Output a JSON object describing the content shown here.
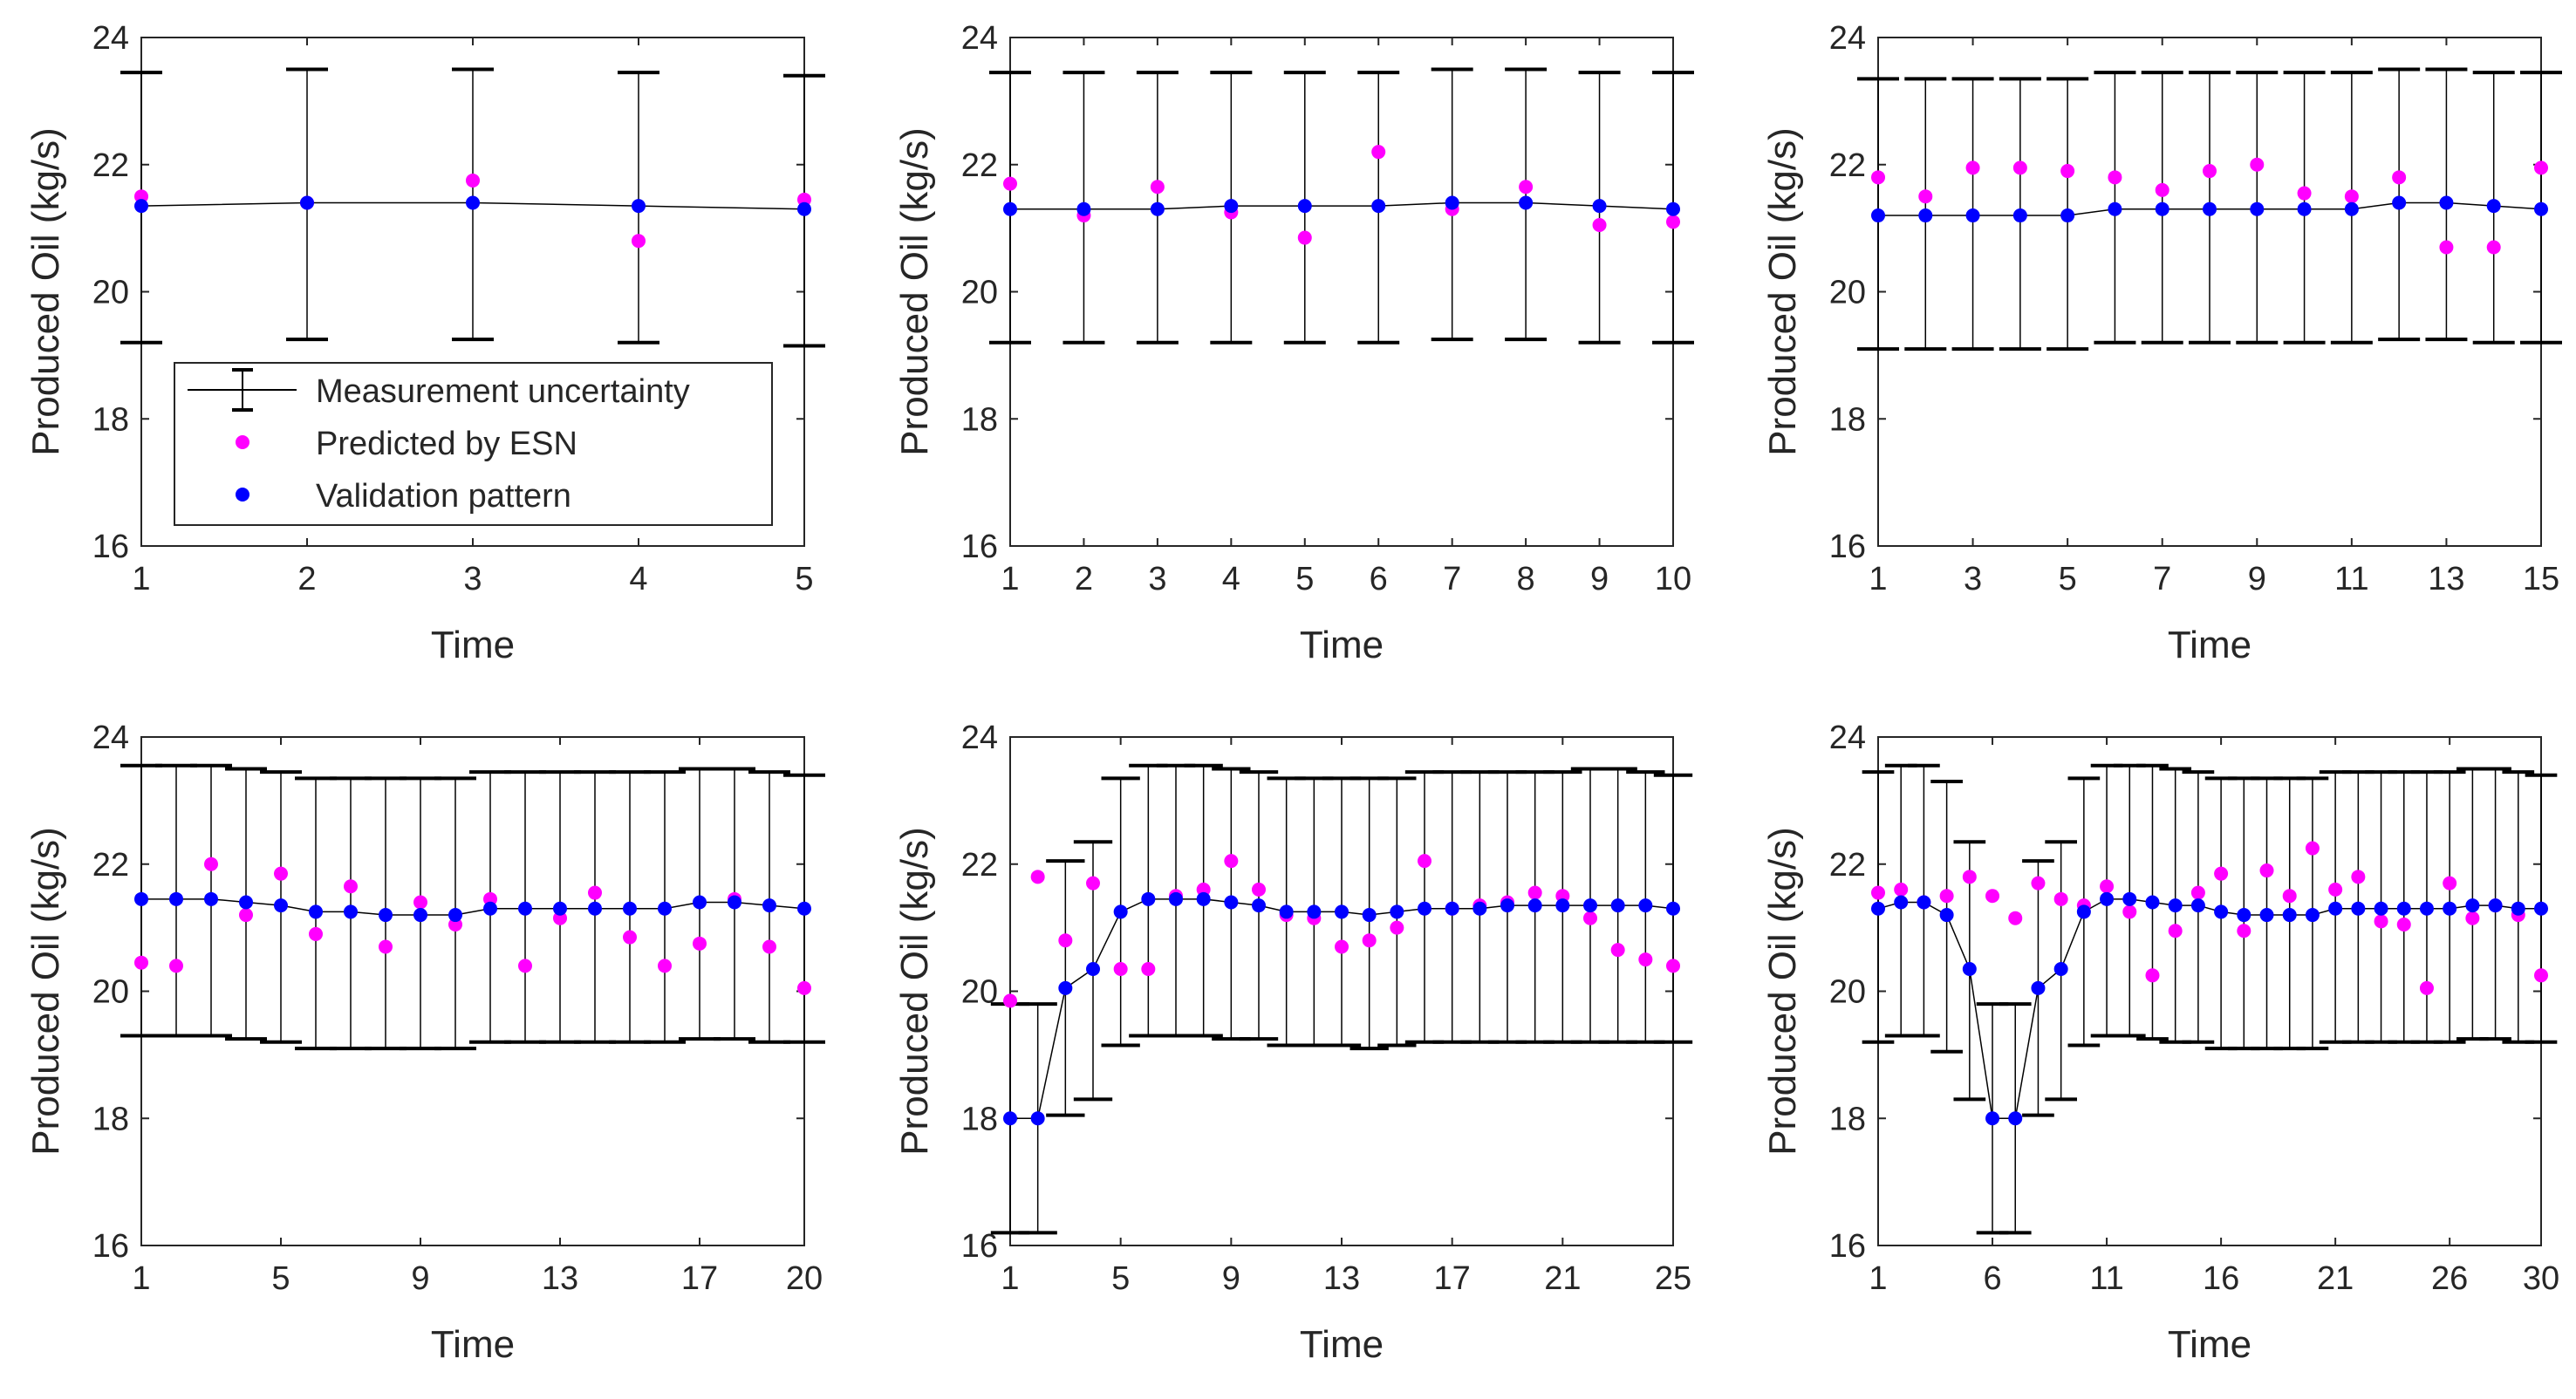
{
  "figure": {
    "colors": {
      "predicted": "#ff00ff",
      "validation": "#0000ff",
      "uncertainty": "#000000",
      "axis": "#262626"
    }
  },
  "legend": {
    "items": [
      {
        "label": "Measurement uncertainty",
        "marker": "errorbar"
      },
      {
        "label": "Predicted by ESN",
        "marker": "magenta-dot"
      },
      {
        "label": "Validation pattern",
        "marker": "blue-dot"
      }
    ]
  },
  "chart_data": [
    {
      "type": "errorbar-scatter",
      "title": "",
      "xlabel": "Time",
      "ylabel": "Produced Oil (kg/s)",
      "ylim": [
        16,
        24
      ],
      "xlim": [
        1,
        5
      ],
      "yticks": [
        "16",
        "18",
        "20",
        "22",
        "24"
      ],
      "xticks": [
        1,
        2,
        3,
        4,
        5
      ],
      "xtick_labels": [
        "1",
        "2",
        "3",
        "4",
        "5"
      ],
      "validation": [
        21.35,
        21.4,
        21.4,
        21.35,
        21.3
      ],
      "predicted": [
        21.5,
        21.4,
        21.75,
        20.8,
        21.45
      ],
      "lower": [
        19.2,
        19.25,
        19.25,
        19.2,
        19.15
      ],
      "upper": [
        23.45,
        23.5,
        23.5,
        23.45,
        23.4
      ],
      "legend": true
    },
    {
      "type": "errorbar-scatter",
      "title": "",
      "xlabel": "Time",
      "ylabel": "Produced Oil (kg/s)",
      "ylim": [
        16,
        24
      ],
      "xlim": [
        1,
        10
      ],
      "yticks": [
        "16",
        "18",
        "20",
        "22",
        "24"
      ],
      "xticks": [
        1,
        2,
        3,
        4,
        5,
        6,
        7,
        8,
        9,
        10
      ],
      "xtick_labels": [
        "1",
        "2",
        "3",
        "4",
        "5",
        "6",
        "7",
        "8",
        "9",
        "10"
      ],
      "validation": [
        21.3,
        21.3,
        21.3,
        21.35,
        21.35,
        21.35,
        21.4,
        21.4,
        21.35,
        21.3
      ],
      "predicted": [
        21.7,
        21.2,
        21.65,
        21.25,
        20.85,
        22.2,
        21.3,
        21.65,
        21.05,
        21.1
      ],
      "lower": [
        19.2,
        19.2,
        19.2,
        19.2,
        19.2,
        19.2,
        19.25,
        19.25,
        19.2,
        19.2
      ],
      "upper": [
        23.45,
        23.45,
        23.45,
        23.45,
        23.45,
        23.45,
        23.5,
        23.5,
        23.45,
        23.45
      ],
      "legend": false
    },
    {
      "type": "errorbar-scatter",
      "title": "",
      "xlabel": "Time",
      "ylabel": "Produced Oil (kg/s)",
      "ylim": [
        16,
        24
      ],
      "xlim": [
        1,
        15
      ],
      "yticks": [
        "16",
        "18",
        "20",
        "22",
        "24"
      ],
      "xticks": [
        1,
        3,
        5,
        7,
        9,
        11,
        13,
        15
      ],
      "xtick_labels": [
        "1",
        "3",
        "5",
        "7",
        "9",
        "11",
        "13",
        "15"
      ],
      "validation": [
        21.2,
        21.2,
        21.2,
        21.2,
        21.2,
        21.3,
        21.3,
        21.3,
        21.3,
        21.3,
        21.3,
        21.4,
        21.4,
        21.35,
        21.3
      ],
      "predicted": [
        21.8,
        21.5,
        21.95,
        21.95,
        21.9,
        21.8,
        21.6,
        21.9,
        22.0,
        21.55,
        21.5,
        21.8,
        20.7,
        20.7,
        21.95
      ],
      "lower": [
        19.1,
        19.1,
        19.1,
        19.1,
        19.1,
        19.2,
        19.2,
        19.2,
        19.2,
        19.2,
        19.2,
        19.25,
        19.25,
        19.2,
        19.2
      ],
      "upper": [
        23.35,
        23.35,
        23.35,
        23.35,
        23.35,
        23.45,
        23.45,
        23.45,
        23.45,
        23.45,
        23.45,
        23.5,
        23.5,
        23.45,
        23.45
      ],
      "legend": false
    },
    {
      "type": "errorbar-scatter",
      "title": "",
      "xlabel": "Time",
      "ylabel": "Produced Oil (kg/s)",
      "ylim": [
        16,
        24
      ],
      "xlim": [
        1,
        20
      ],
      "yticks": [
        "16",
        "18",
        "20",
        "22",
        "24"
      ],
      "xticks": [
        1,
        5,
        9,
        13,
        17,
        20
      ],
      "xtick_labels": [
        "1",
        "5",
        "9",
        "13",
        "17",
        "20"
      ],
      "validation": [
        21.45,
        21.45,
        21.45,
        21.4,
        21.35,
        21.25,
        21.25,
        21.2,
        21.2,
        21.2,
        21.3,
        21.3,
        21.3,
        21.3,
        21.3,
        21.3,
        21.4,
        21.4,
        21.35,
        21.3
      ],
      "predicted": [
        20.45,
        20.4,
        22.0,
        21.2,
        21.85,
        20.9,
        21.65,
        20.7,
        21.4,
        21.05,
        21.45,
        20.4,
        21.15,
        21.55,
        20.85,
        20.4,
        20.75,
        21.45,
        20.7,
        20.05
      ],
      "lower": [
        19.3,
        19.3,
        19.3,
        19.25,
        19.2,
        19.1,
        19.1,
        19.1,
        19.1,
        19.1,
        19.2,
        19.2,
        19.2,
        19.2,
        19.2,
        19.2,
        19.25,
        19.25,
        19.2,
        19.2
      ],
      "upper": [
        23.55,
        23.55,
        23.55,
        23.5,
        23.45,
        23.35,
        23.35,
        23.35,
        23.35,
        23.35,
        23.45,
        23.45,
        23.45,
        23.45,
        23.45,
        23.45,
        23.5,
        23.5,
        23.45,
        23.4
      ],
      "legend": false
    },
    {
      "type": "errorbar-scatter",
      "title": "",
      "xlabel": "Time",
      "ylabel": "Produced Oil (kg/s)",
      "ylim": [
        16,
        24
      ],
      "xlim": [
        1,
        25
      ],
      "yticks": [
        "16",
        "18",
        "20",
        "22",
        "24"
      ],
      "xticks": [
        1,
        5,
        9,
        13,
        17,
        21,
        25
      ],
      "xtick_labels": [
        "1",
        "5",
        "9",
        "13",
        "17",
        "21",
        "25"
      ],
      "validation": [
        18.0,
        18.0,
        20.05,
        20.35,
        21.25,
        21.45,
        21.45,
        21.45,
        21.4,
        21.35,
        21.25,
        21.25,
        21.25,
        21.2,
        21.25,
        21.3,
        21.3,
        21.3,
        21.35,
        21.35,
        21.35,
        21.35,
        21.35,
        21.35,
        21.3
      ],
      "predicted": [
        19.85,
        21.8,
        20.8,
        21.7,
        20.35,
        20.35,
        21.5,
        21.6,
        22.05,
        21.6,
        21.2,
        21.15,
        20.7,
        20.8,
        21.0,
        22.05,
        21.3,
        21.35,
        21.4,
        21.55,
        21.5,
        21.15,
        20.65,
        20.5,
        20.4
      ],
      "lower": [
        16.2,
        16.2,
        18.05,
        18.3,
        19.15,
        19.3,
        19.3,
        19.3,
        19.25,
        19.25,
        19.15,
        19.15,
        19.15,
        19.1,
        19.15,
        19.2,
        19.2,
        19.2,
        19.2,
        19.2,
        19.2,
        19.2,
        19.2,
        19.2,
        19.2
      ],
      "upper": [
        19.8,
        19.8,
        22.05,
        22.35,
        23.35,
        23.55,
        23.55,
        23.55,
        23.5,
        23.45,
        23.35,
        23.35,
        23.35,
        23.35,
        23.35,
        23.45,
        23.45,
        23.45,
        23.45,
        23.45,
        23.45,
        23.5,
        23.5,
        23.45,
        23.4
      ],
      "legend": false
    },
    {
      "type": "errorbar-scatter",
      "title": "",
      "xlabel": "Time",
      "ylabel": "Produced Oil (kg/s)",
      "ylim": [
        16,
        24
      ],
      "xlim": [
        1,
        30
      ],
      "yticks": [
        "16",
        "18",
        "20",
        "22",
        "24"
      ],
      "xticks": [
        1,
        6,
        11,
        16,
        21,
        26,
        30
      ],
      "xtick_labels": [
        "1",
        "6",
        "11",
        "16",
        "21",
        "26",
        "30"
      ],
      "validation": [
        21.3,
        21.4,
        21.4,
        21.2,
        20.35,
        18.0,
        18.0,
        20.05,
        20.35,
        21.25,
        21.45,
        21.45,
        21.4,
        21.35,
        21.35,
        21.25,
        21.2,
        21.2,
        21.2,
        21.2,
        21.3,
        21.3,
        21.3,
        21.3,
        21.3,
        21.3,
        21.35,
        21.35,
        21.3,
        21.3
      ],
      "predicted": [
        21.55,
        21.6,
        21.4,
        21.5,
        21.8,
        21.5,
        21.15,
        21.7,
        21.45,
        21.35,
        21.65,
        21.25,
        20.25,
        20.95,
        21.55,
        21.85,
        20.95,
        21.9,
        21.5,
        22.25,
        21.6,
        21.8,
        21.1,
        21.05,
        20.05,
        21.7,
        21.15,
        21.35,
        21.2,
        20.25
      ],
      "lower": [
        19.2,
        19.3,
        19.3,
        19.05,
        18.3,
        16.2,
        16.2,
        18.05,
        18.3,
        19.15,
        19.3,
        19.3,
        19.25,
        19.2,
        19.2,
        19.1,
        19.1,
        19.1,
        19.1,
        19.1,
        19.2,
        19.2,
        19.2,
        19.2,
        19.2,
        19.2,
        19.25,
        19.25,
        19.2,
        19.2
      ],
      "upper": [
        23.45,
        23.55,
        23.55,
        23.3,
        22.35,
        19.8,
        19.8,
        22.05,
        22.35,
        23.35,
        23.55,
        23.55,
        23.55,
        23.5,
        23.45,
        23.35,
        23.35,
        23.35,
        23.35,
        23.35,
        23.45,
        23.45,
        23.45,
        23.45,
        23.45,
        23.45,
        23.5,
        23.5,
        23.45,
        23.4
      ],
      "legend": false
    }
  ]
}
